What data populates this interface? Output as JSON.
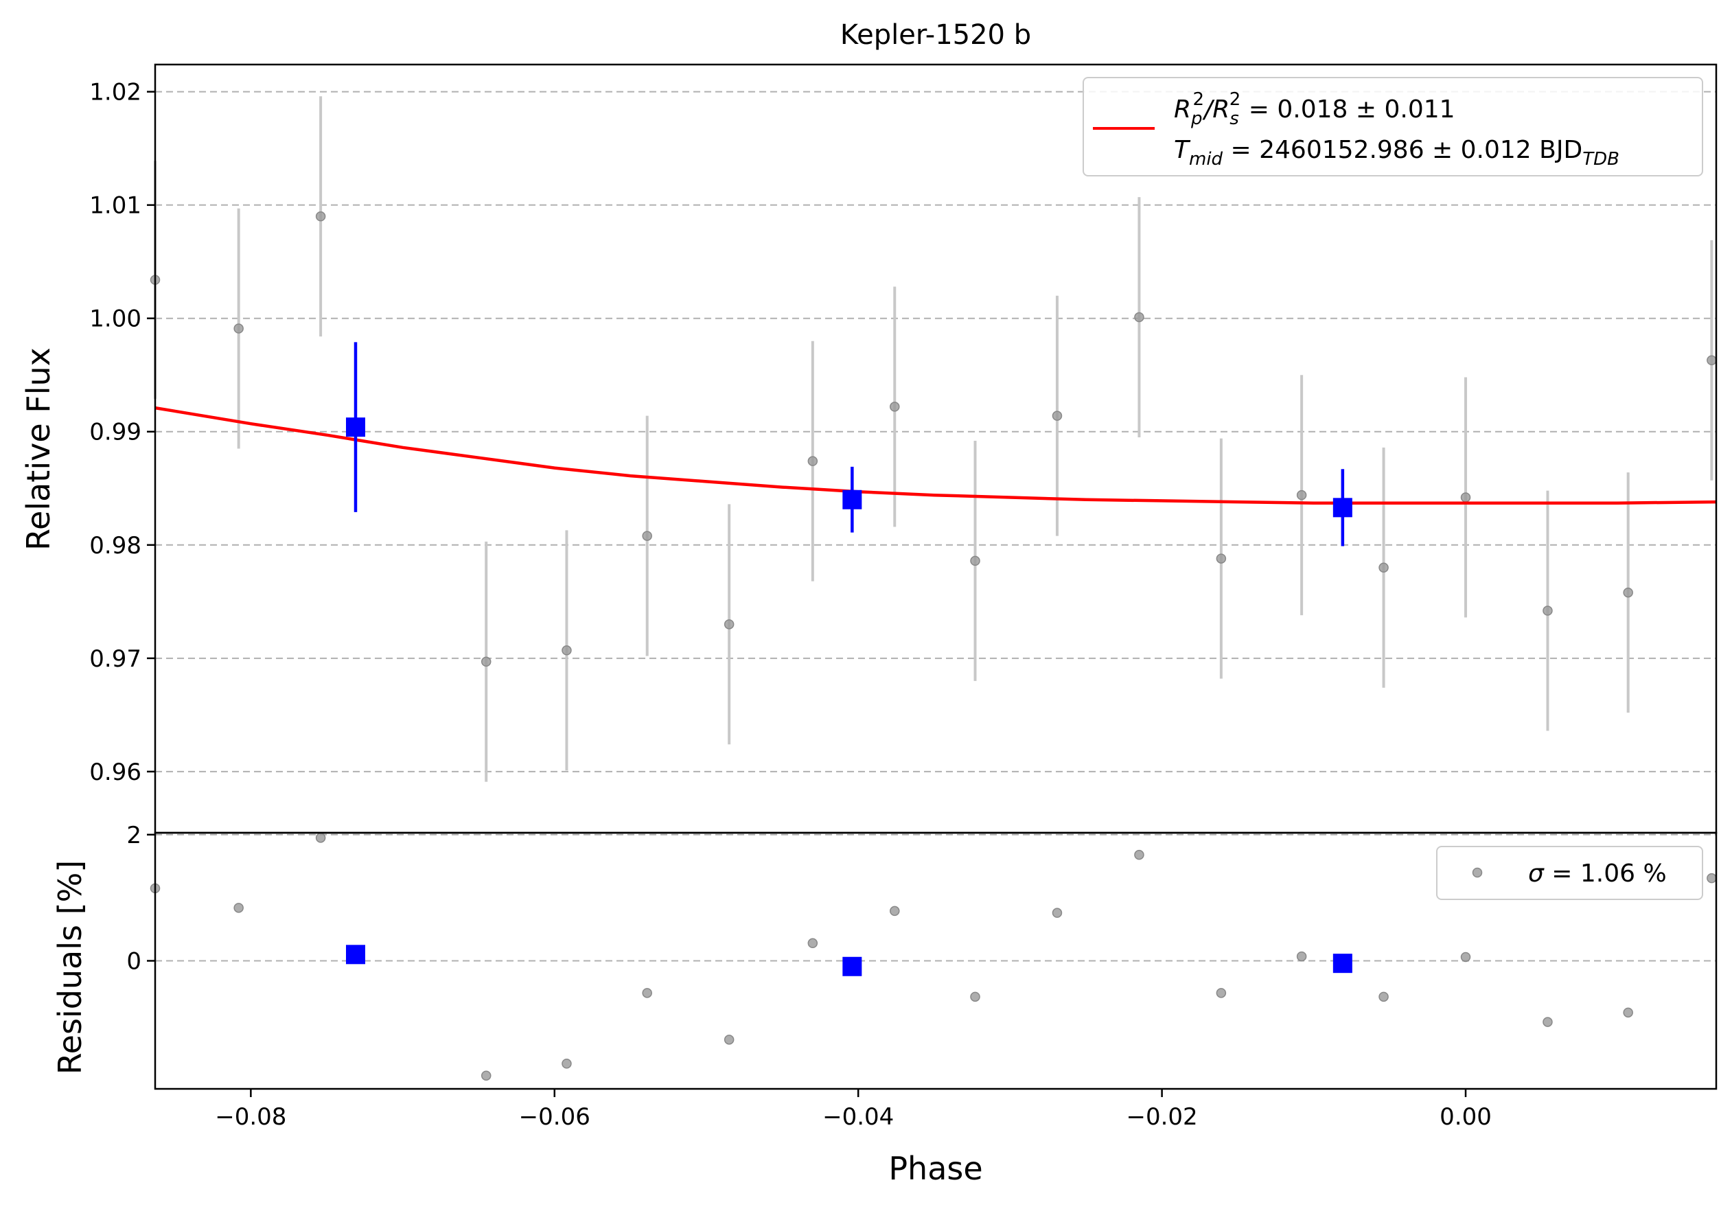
{
  "chart_data": [
    {
      "panel": "main",
      "type": "scatter",
      "title": "Kepler-1520 b",
      "xlabel": "",
      "ylabel": "Relative Flux",
      "xlim": [
        -0.0863,
        0.0165
      ],
      "ylim": [
        0.9546,
        1.0224
      ],
      "grid": "y-dashed",
      "yticks": [
        0.96,
        0.97,
        0.98,
        0.99,
        1.0,
        1.01,
        1.02
      ],
      "ytick_labels": [
        "0.96",
        "0.97",
        "0.98",
        "0.99",
        "1.00",
        "1.01",
        "1.02"
      ],
      "legend": {
        "placement": "upper-right",
        "model_label": "R_p^2/R_s^2 = 0.018 ± 0.011",
        "model_label_parts": [
          "R",
          "p",
          "2",
          "/R",
          "s",
          "2",
          " = 0.018 ± 0.011"
        ],
        "tmid_label": "T_mid = 2460152.986 ± 0.012 BJD_TDB",
        "tmid_label_parts": [
          "T",
          "mid",
          " = 2460152.986 ± 0.012 BJD",
          "TDB"
        ]
      },
      "colors": {
        "data": "#999999",
        "errorbar": "#c8c8c8",
        "binned": "#0000ff",
        "model": "#ff0000"
      },
      "series": [
        {
          "role": "data",
          "marker": "circle",
          "points": [
            {
              "x": -0.0863,
              "y": 1.0034,
              "err": 0.0105
            },
            {
              "x": -0.0808,
              "y": 0.9991,
              "err": 0.0106
            },
            {
              "x": -0.0754,
              "y": 1.009,
              "err": 0.0106
            },
            {
              "x": -0.0645,
              "y": 0.9697,
              "err": 0.0106
            },
            {
              "x": -0.0592,
              "y": 0.9707,
              "err": 0.0106
            },
            {
              "x": -0.0539,
              "y": 0.9808,
              "err": 0.0106
            },
            {
              "x": -0.0485,
              "y": 0.973,
              "err": 0.0106
            },
            {
              "x": -0.043,
              "y": 0.9874,
              "err": 0.0106
            },
            {
              "x": -0.0376,
              "y": 0.9922,
              "err": 0.0106
            },
            {
              "x": -0.0323,
              "y": 0.9786,
              "err": 0.0106
            },
            {
              "x": -0.0269,
              "y": 0.9914,
              "err": 0.0106
            },
            {
              "x": -0.0215,
              "y": 1.0001,
              "err": 0.0106
            },
            {
              "x": -0.0161,
              "y": 0.9788,
              "err": 0.0106
            },
            {
              "x": -0.0108,
              "y": 0.9844,
              "err": 0.0106
            },
            {
              "x": -0.0054,
              "y": 0.978,
              "err": 0.0106
            },
            {
              "x": 0.0,
              "y": 0.9842,
              "err": 0.0106
            },
            {
              "x": 0.0054,
              "y": 0.9742,
              "err": 0.0106
            },
            {
              "x": 0.0107,
              "y": 0.9758,
              "err": 0.0106
            },
            {
              "x": 0.0162,
              "y": 0.9963,
              "err": 0.0106
            }
          ]
        },
        {
          "role": "binned",
          "marker": "square",
          "points": [
            {
              "x": -0.0731,
              "y": 0.9904,
              "err": 0.0075
            },
            {
              "x": -0.0404,
              "y": 0.984,
              "err": 0.0029
            },
            {
              "x": -0.0081,
              "y": 0.9833,
              "err": 0.0034
            }
          ]
        },
        {
          "role": "model",
          "line": "solid",
          "points": [
            {
              "x": -0.0863,
              "y": 0.9921
            },
            {
              "x": -0.08,
              "y": 0.9907
            },
            {
              "x": -0.075,
              "y": 0.9897
            },
            {
              "x": -0.07,
              "y": 0.9886
            },
            {
              "x": -0.065,
              "y": 0.9877
            },
            {
              "x": -0.06,
              "y": 0.9868
            },
            {
              "x": -0.055,
              "y": 0.9861
            },
            {
              "x": -0.05,
              "y": 0.9856
            },
            {
              "x": -0.045,
              "y": 0.9851
            },
            {
              "x": -0.04,
              "y": 0.9847
            },
            {
              "x": -0.035,
              "y": 0.9844
            },
            {
              "x": -0.03,
              "y": 0.9842
            },
            {
              "x": -0.025,
              "y": 0.984
            },
            {
              "x": -0.02,
              "y": 0.9839
            },
            {
              "x": -0.015,
              "y": 0.9838
            },
            {
              "x": -0.01,
              "y": 0.9837
            },
            {
              "x": -0.005,
              "y": 0.9837
            },
            {
              "x": 0.0,
              "y": 0.9837
            },
            {
              "x": 0.005,
              "y": 0.9837
            },
            {
              "x": 0.01,
              "y": 0.9837
            },
            {
              "x": 0.0165,
              "y": 0.9838
            }
          ]
        }
      ]
    },
    {
      "panel": "residuals",
      "type": "scatter",
      "xlabel": "Phase",
      "ylabel": "Residuals [%]",
      "xlim": [
        -0.0863,
        0.0165
      ],
      "ylim": [
        -2.03,
        2.03
      ],
      "grid": "y-dashed",
      "yticks": [
        0,
        2
      ],
      "ytick_labels": [
        "0",
        "2"
      ],
      "xticks": [
        -0.08,
        -0.06,
        -0.04,
        -0.02,
        0.0
      ],
      "xtick_labels": [
        "−0.08",
        "−0.06",
        "−0.04",
        "−0.02",
        "0.00"
      ],
      "legend": {
        "placement": "upper-right",
        "label": "σ = 1.06 %",
        "label_parts": [
          "σ",
          " = 1.06 %"
        ]
      },
      "series": [
        {
          "role": "residuals",
          "marker": "circle",
          "points": [
            {
              "x": -0.0863,
              "y": 1.15
            },
            {
              "x": -0.0808,
              "y": 0.84
            },
            {
              "x": -0.0754,
              "y": 1.95
            },
            {
              "x": -0.0645,
              "y": -1.82
            },
            {
              "x": -0.0592,
              "y": -1.63
            },
            {
              "x": -0.0539,
              "y": -0.51
            },
            {
              "x": -0.0485,
              "y": -1.25
            },
            {
              "x": -0.043,
              "y": 0.28
            },
            {
              "x": -0.0376,
              "y": 0.79
            },
            {
              "x": -0.0323,
              "y": -0.57
            },
            {
              "x": -0.0269,
              "y": 0.76
            },
            {
              "x": -0.0215,
              "y": 1.68
            },
            {
              "x": -0.0161,
              "y": -0.51
            },
            {
              "x": -0.0108,
              "y": 0.07
            },
            {
              "x": -0.0054,
              "y": -0.57
            },
            {
              "x": 0.0,
              "y": 0.06
            },
            {
              "x": 0.0054,
              "y": -0.97
            },
            {
              "x": 0.0107,
              "y": -0.82
            },
            {
              "x": 0.0162,
              "y": 1.31
            }
          ]
        },
        {
          "role": "binned",
          "marker": "square",
          "points": [
            {
              "x": -0.0731,
              "y": 0.1
            },
            {
              "x": -0.0404,
              "y": -0.09
            },
            {
              "x": -0.0081,
              "y": -0.04
            }
          ]
        }
      ]
    }
  ]
}
